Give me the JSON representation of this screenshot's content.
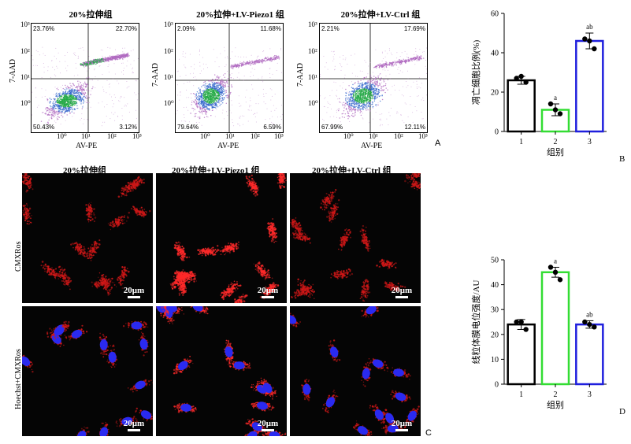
{
  "flow": {
    "panel_letter": "A",
    "y_axis_label": "7-AAD",
    "x_axis_label": "AV-PE",
    "tick_labels": [
      "10⁰",
      "10¹",
      "10²",
      "10³"
    ],
    "plots": [
      {
        "title": "20%拉伸组",
        "ul": "23.76%",
        "ur": "22.70%",
        "ll": "50.43%",
        "lr": "3.12%"
      },
      {
        "title": "20%拉伸+LV-Piezo1 组",
        "ul": "2.09%",
        "ur": "11.68%",
        "ll": "79.64%",
        "lr": "6.59%"
      },
      {
        "title": "20%拉伸+LV-Ctrl 组",
        "ul": "2.21%",
        "ur": "17.69%",
        "ll": "67.99%",
        "lr": "12.11%"
      }
    ]
  },
  "micro": {
    "panel_letter": "C",
    "columns": [
      "20%拉伸组",
      "20%拉伸+LV-Piezo1 组",
      "20%拉伸+LV-Ctrl 组"
    ],
    "rows": [
      "CMXRos",
      "Hoechst+CMXRos"
    ],
    "scale_label": "20μm"
  },
  "chart_data": [
    {
      "type": "bar",
      "panel_letter": "B",
      "categories": [
        "1",
        "2",
        "3"
      ],
      "values": [
        26,
        11,
        46
      ],
      "errors": [
        2,
        3,
        4
      ],
      "points": [
        [
          27,
          25,
          28
        ],
        [
          14,
          9,
          11
        ],
        [
          47,
          42,
          46
        ]
      ],
      "annotations": [
        "",
        "a",
        "ab"
      ],
      "bar_colors": [
        "#000000",
        "#33dd33",
        "#1f1fdd"
      ],
      "ylabel": "凋亡细胞比例(%)",
      "xlabel": "组别",
      "ylim": [
        0,
        60
      ],
      "yticks": [
        0,
        20,
        40,
        60
      ]
    },
    {
      "type": "bar",
      "panel_letter": "D",
      "categories": [
        "1",
        "2",
        "3"
      ],
      "values": [
        24,
        45,
        24
      ],
      "errors": [
        2,
        2,
        1.5
      ],
      "points": [
        [
          25,
          22,
          25
        ],
        [
          47,
          42,
          45
        ],
        [
          25,
          23,
          24
        ]
      ],
      "annotations": [
        "",
        "a",
        "ab"
      ],
      "bar_colors": [
        "#000000",
        "#33dd33",
        "#1f1fdd"
      ],
      "ylabel": "线粒体膜电位强度/AU",
      "xlabel": "组别",
      "ylim": [
        0,
        50
      ],
      "yticks": [
        0,
        10,
        20,
        30,
        40,
        50
      ]
    }
  ]
}
